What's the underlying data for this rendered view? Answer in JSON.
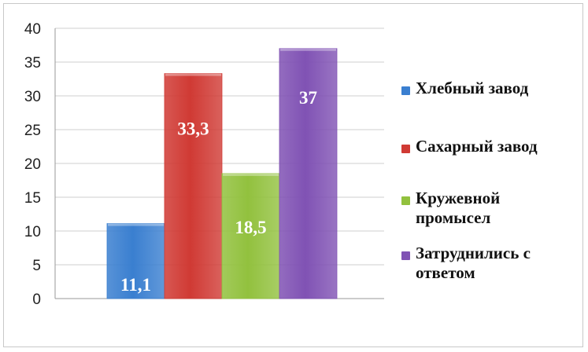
{
  "chart_data": {
    "type": "bar",
    "categories": [
      "Хлебный завод",
      "Сахарный завод",
      "Кружевной промысел",
      "Затруднились с ответом"
    ],
    "values": [
      11.1,
      33.3,
      18.5,
      37
    ],
    "value_labels": [
      "11,1",
      "33,3",
      "18,5",
      "37"
    ],
    "colors": [
      "#3a7fd0",
      "#d03a34",
      "#92c13e",
      "#8052b4"
    ],
    "ylim": [
      0,
      40
    ],
    "yticks": [
      0,
      5,
      10,
      15,
      20,
      25,
      30,
      35,
      40
    ],
    "grid": true,
    "legend_position": "right"
  },
  "legend": {
    "items": [
      {
        "label": "Хлебный завод",
        "color": "#3a7fd0"
      },
      {
        "label": "Сахарный завод",
        "color": "#d03a34"
      },
      {
        "label": "Кружевной промысел",
        "color": "#92c13e"
      },
      {
        "label": "Затруднились с ответом",
        "color": "#8052b4"
      }
    ]
  }
}
